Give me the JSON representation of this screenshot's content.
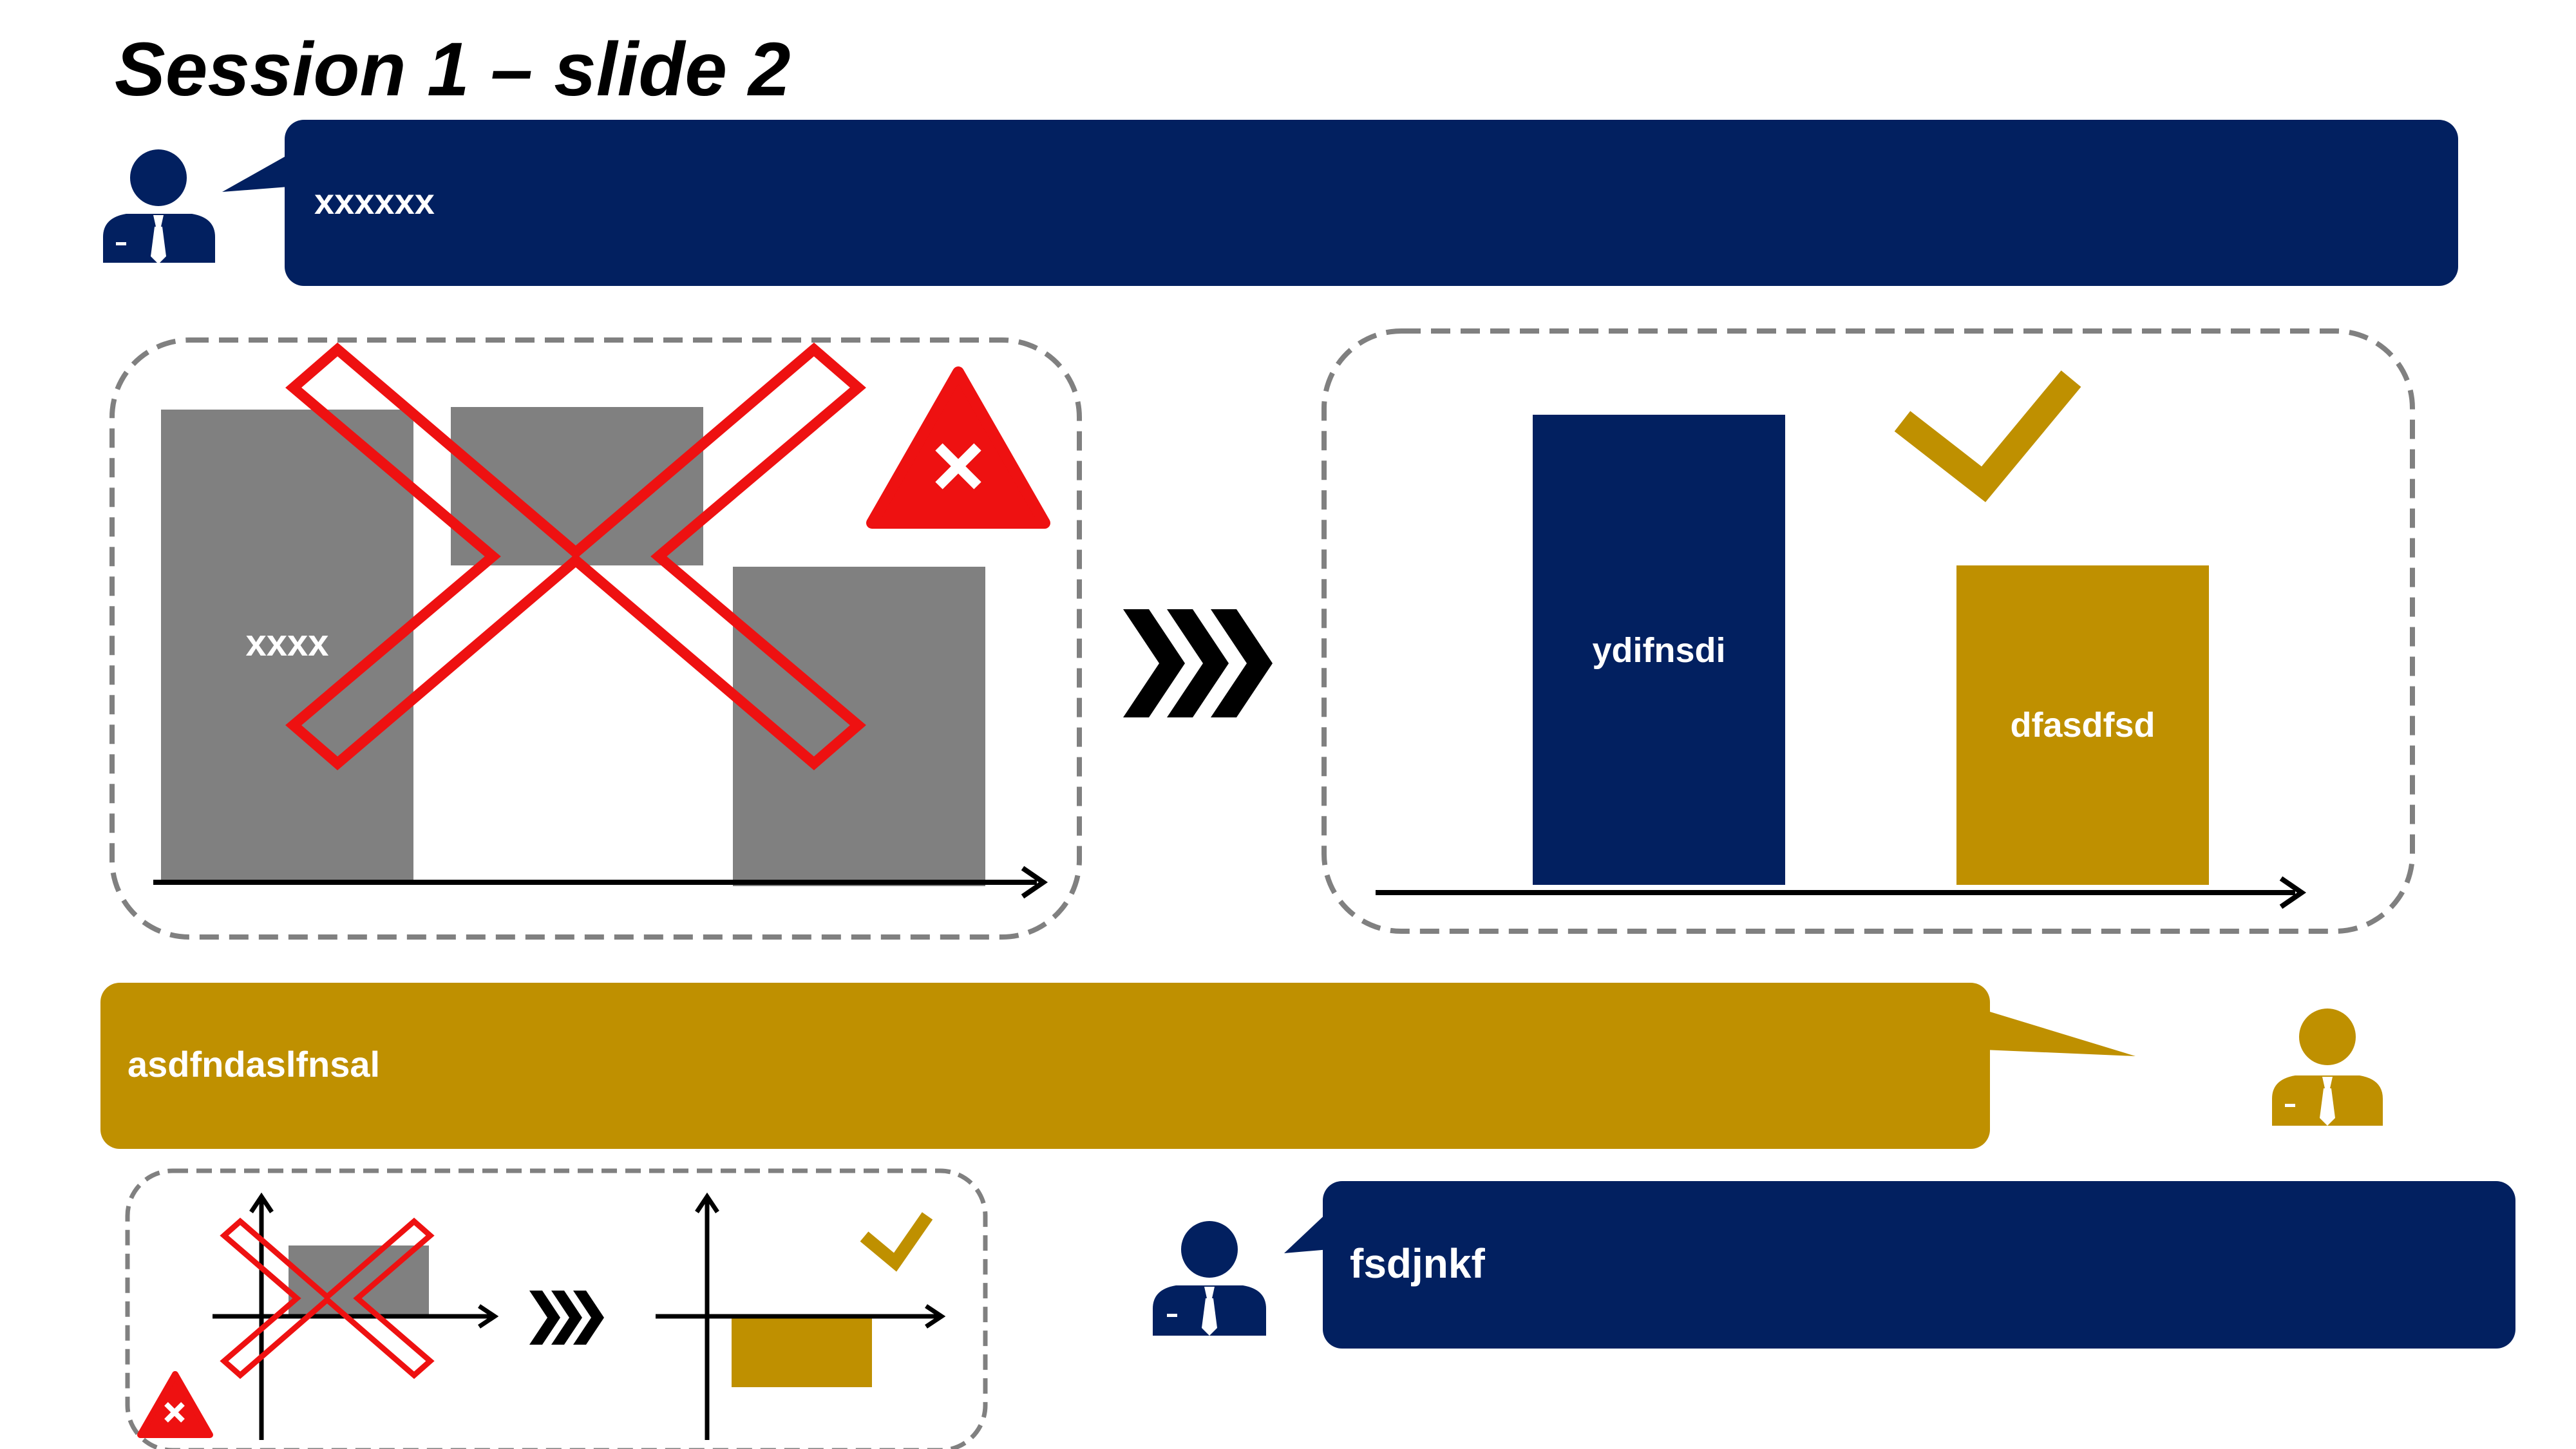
{
  "slide": {
    "title": "Session 1 – slide 2"
  },
  "bubbles": {
    "top": {
      "text": "xxxxxx"
    },
    "middle": {
      "text": "asdfndaslfnsal"
    },
    "bottom": {
      "text": "fsdjnkf"
    }
  },
  "left_panel": {
    "bar_label": "xxxx"
  },
  "right_panel": {
    "bar1_label": "ydifnsdi",
    "bar2_label": "dfasdfsd"
  },
  "colors": {
    "navy": "#022060",
    "gold": "#BF9000",
    "grey": "#808080",
    "red": "#EE1111",
    "dash": "#808080",
    "black": "#000000"
  },
  "icons": [
    "person-icon",
    "warning-triangle-icon",
    "cross-out-icon",
    "checkmark-icon",
    "triple-chevron-icon",
    "axis-arrow-icon"
  ]
}
